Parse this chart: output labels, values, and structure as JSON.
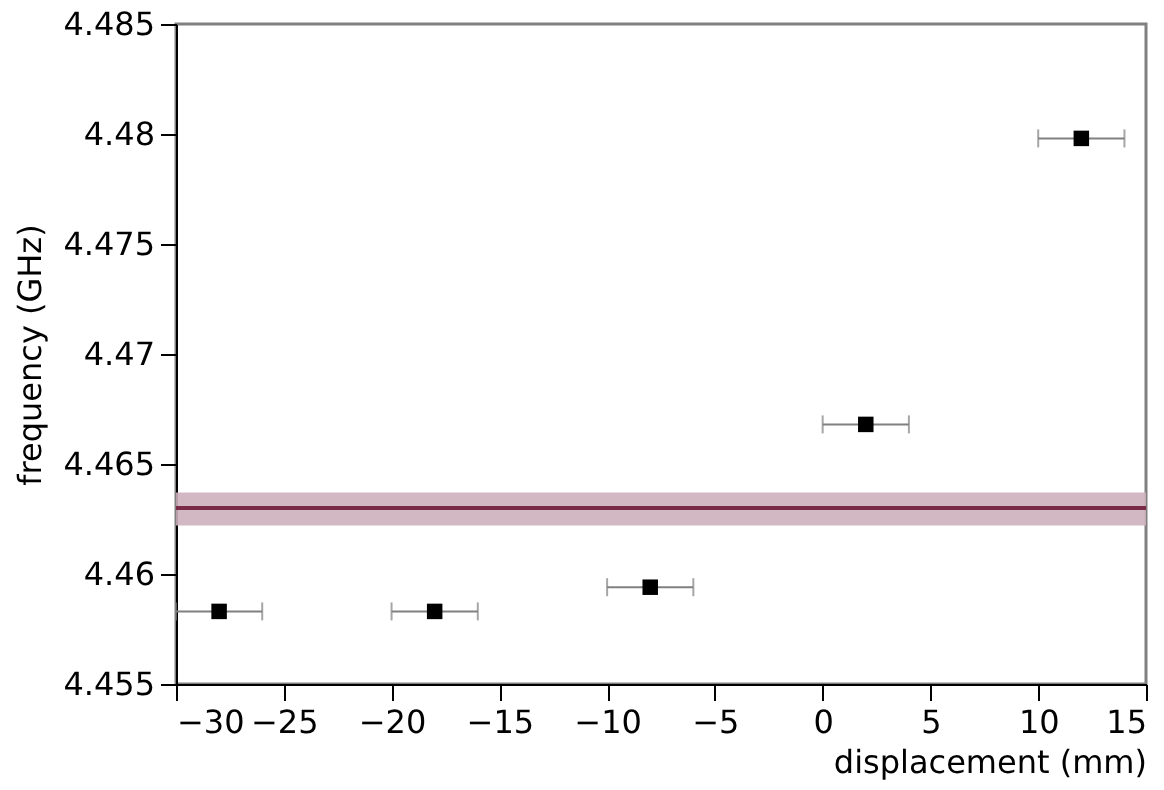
{
  "chart_data": {
    "type": "scatter",
    "xlabel": "displacement (mm)",
    "ylabel": "frequency  (GHz)",
    "x": [
      -28,
      -18,
      -8,
      2,
      12
    ],
    "series": [
      {
        "color": "#000000",
        "values": [
          4.4583,
          4.4583,
          4.4594,
          4.4668,
          4.4798
        ],
        "xerrors": [
          2,
          2,
          2,
          2,
          2
        ]
      }
    ],
    "xlim": [
      -30,
      15
    ],
    "xticks": [
      -30,
      -25,
      -20,
      -15,
      -10,
      -5,
      0,
      5,
      10,
      15
    ],
    "ylim": [
      4.455,
      4.485
    ],
    "yticks": [
      4.455,
      4.46,
      4.465,
      4.47,
      4.475,
      4.48,
      4.485
    ],
    "ref_lines": [
      {
        "axis": "y",
        "value": 4.463,
        "color": "#7b2a45"
      }
    ],
    "bands": [
      {
        "axis": "y",
        "from": 4.4622,
        "to": 4.4637,
        "color": "#cdb0bb"
      }
    ],
    "marker": "square"
  }
}
